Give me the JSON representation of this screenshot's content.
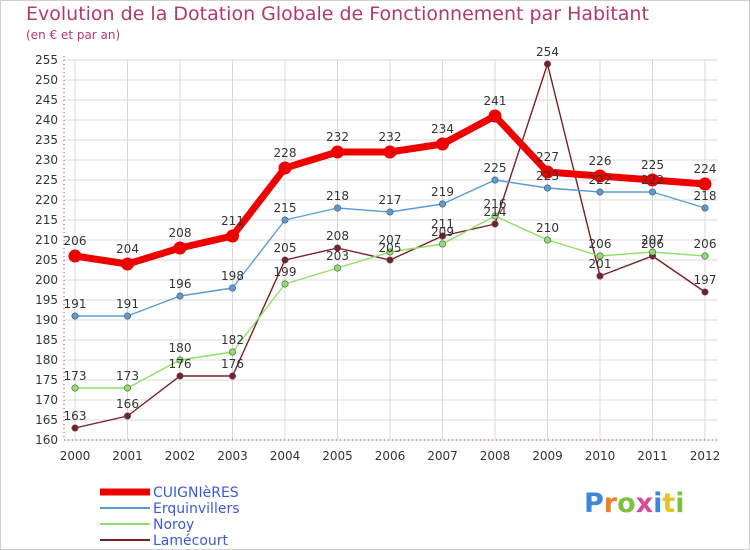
{
  "title": "Evolution de la Dotation Globale de Fonctionnement par Habitant",
  "subtitle": "(en € et par an)",
  "logo": "Proxiti",
  "colors": {
    "title": "#b13a6a",
    "axis": "#cc2a4a",
    "grid": "#d8d8d8",
    "label": "#333333",
    "legend_text": "#3a5ad8"
  },
  "chart_data": {
    "type": "line",
    "categories": [
      "2000",
      "2001",
      "2002",
      "2003",
      "2004",
      "2005",
      "2006",
      "2007",
      "2008",
      "2009",
      "2010",
      "2011",
      "2012"
    ],
    "ylim": [
      160,
      255
    ],
    "yticks": [
      160,
      165,
      170,
      175,
      180,
      185,
      190,
      195,
      200,
      205,
      210,
      215,
      220,
      225,
      230,
      235,
      240,
      245,
      250,
      255
    ],
    "grid": true,
    "legend_position": "bottom-left",
    "series": [
      {
        "name": "CUIGNIèRES",
        "color": "#ee0000",
        "values": [
          206,
          204,
          208,
          211,
          228,
          232,
          232,
          234,
          241,
          227,
          226,
          225,
          224
        ]
      },
      {
        "name": "Erquinvillers",
        "color": "#5b9bd5",
        "values": [
          191,
          191,
          196,
          198,
          215,
          218,
          217,
          219,
          225,
          223,
          222,
          222,
          218
        ]
      },
      {
        "name": "Noroy",
        "color": "#8ee068",
        "values": [
          173,
          173,
          180,
          182,
          199,
          203,
          207,
          209,
          216,
          210,
          206,
          207,
          206
        ]
      },
      {
        "name": "Lamécourt",
        "color": "#7a1e28",
        "values": [
          163,
          166,
          176,
          176,
          205,
          208,
          205,
          211,
          214,
          254,
          201,
          206,
          197
        ]
      }
    ]
  }
}
